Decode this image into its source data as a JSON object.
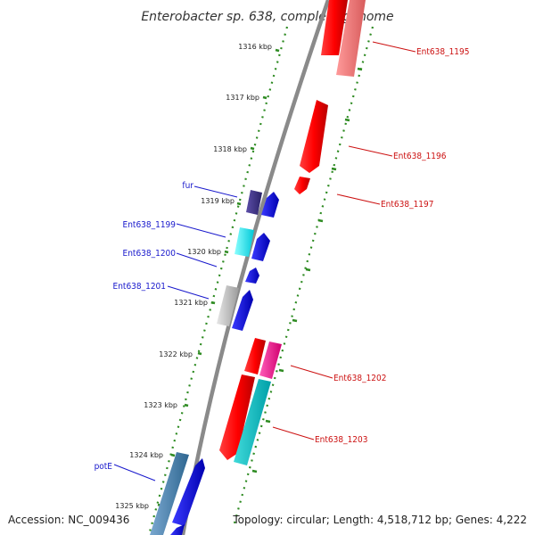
{
  "title": "Enterobacter sp. 638, complete genome",
  "footer": {
    "accession": "Accession: NC_009436",
    "topology": "Topology: circular; Length: 4,518,712 bp; Genes: 4,222"
  },
  "colors": {
    "backbone": "#8a8a8a",
    "tick": "#2e8b22",
    "left_label": "#1818cc",
    "right_label": "#cc1111"
  },
  "kbp_ticks": [
    "1316 kbp",
    "1317 kbp",
    "1318 kbp",
    "1319 kbp",
    "1320 kbp",
    "1321 kbp",
    "1322 kbp",
    "1323 kbp",
    "1324 kbp",
    "1325 kbp"
  ],
  "gene_labels_left": [
    "fur",
    "Ent638_1199",
    "Ent638_1200",
    "Ent638_1201",
    "potE"
  ],
  "gene_labels_right": [
    "Ent638_1195",
    "Ent638_1196",
    "Ent638_1197",
    "Ent638_1202",
    "Ent638_1203"
  ]
}
